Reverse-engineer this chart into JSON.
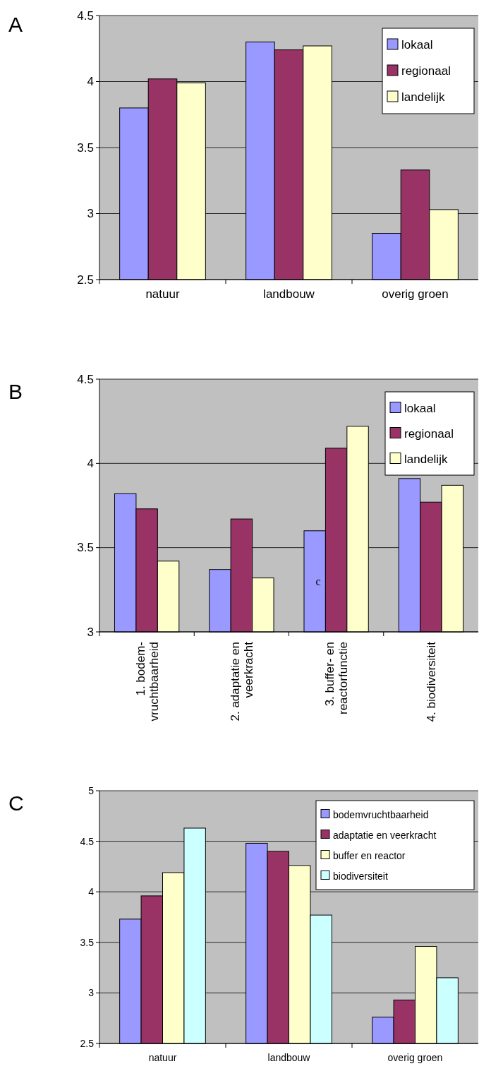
{
  "chart_data": [
    {
      "type": "bar",
      "title": "A",
      "categories": [
        "natuur",
        "landbouw",
        "overig groen"
      ],
      "series": [
        {
          "name": "lokaal",
          "color": "#9999ff",
          "values": [
            3.8,
            4.3,
            2.85
          ]
        },
        {
          "name": "regionaal",
          "color": "#993366",
          "values": [
            4.02,
            4.24,
            3.33
          ]
        },
        {
          "name": "landelijk",
          "color": "#ffffcc",
          "values": [
            3.99,
            4.27,
            3.03
          ]
        }
      ],
      "ylim": [
        2.5,
        4.5
      ],
      "yticks": [
        2.5,
        3,
        3.5,
        4,
        4.5
      ],
      "grid": "y",
      "legend": "top right"
    },
    {
      "type": "bar",
      "title": "B",
      "categories": [
        "1. bodem-\nvruchtbaarheid",
        "2. adaptatie en\nveerkracht",
        "3. buffer- en\nreactorfunctie",
        "4. biodiversiteit"
      ],
      "series": [
        {
          "name": "lokaal",
          "color": "#9999ff",
          "values": [
            3.82,
            3.37,
            3.6,
            3.91
          ]
        },
        {
          "name": "regionaal",
          "color": "#993366",
          "values": [
            3.73,
            3.67,
            4.09,
            3.77
          ]
        },
        {
          "name": "landelijk",
          "color": "#ffffcc",
          "values": [
            3.42,
            3.32,
            4.22,
            3.87
          ]
        }
      ],
      "ylim": [
        3,
        4.5
      ],
      "yticks": [
        3,
        3.5,
        4,
        4.5
      ],
      "grid": "y",
      "legend": "top right",
      "annotations": [
        "c"
      ]
    },
    {
      "type": "bar",
      "title": "C",
      "categories": [
        "natuur",
        "landbouw",
        "overig groen"
      ],
      "series": [
        {
          "name": "bodemvruchtbaarheid",
          "color": "#9999ff",
          "values": [
            3.73,
            4.48,
            2.76
          ]
        },
        {
          "name": "adaptatie en veerkracht",
          "color": "#993366",
          "values": [
            3.96,
            4.4,
            2.93
          ]
        },
        {
          "name": "buffer en reactor",
          "color": "#ffffcc",
          "values": [
            4.19,
            4.26,
            3.46
          ]
        },
        {
          "name": "biodiversiteit",
          "color": "#ccffff",
          "values": [
            4.63,
            3.77,
            3.15
          ]
        }
      ],
      "ylim": [
        2.5,
        5
      ],
      "yticks": [
        2.5,
        3,
        3.5,
        4,
        4.5,
        5
      ],
      "grid": "y",
      "legend": "top right"
    }
  ]
}
